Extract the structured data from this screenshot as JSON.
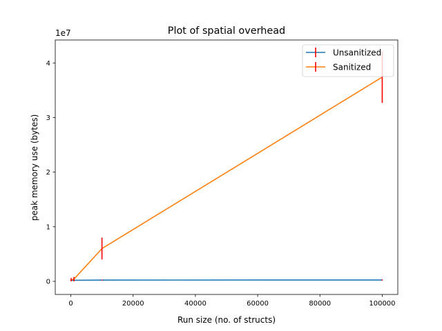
{
  "chart_data": {
    "type": "line",
    "title": "Plot of spatial overhead",
    "xlabel": "Run size (no. of structs)",
    "ylabel": "peak memory use (bytes)",
    "y_offset_text": "1e7",
    "xlim": [
      -5000,
      105000
    ],
    "ylim": [
      -2400000,
      44200000
    ],
    "x_ticks": [
      0,
      20000,
      40000,
      60000,
      80000,
      100000
    ],
    "x_tick_labels": [
      "0",
      "20000",
      "40000",
      "60000",
      "80000",
      "100000"
    ],
    "y_ticks": [
      0,
      10000000,
      20000000,
      30000000,
      40000000
    ],
    "y_tick_labels": [
      "0",
      "1",
      "2",
      "3",
      "4"
    ],
    "grid": false,
    "legend_position": "upper right",
    "x": [
      100,
      1000,
      10000,
      100000
    ],
    "series": [
      {
        "name": "Unsanitized",
        "color": "#1f77b4",
        "values": [
          180000,
          200000,
          230000,
          250000
        ],
        "errors": [
          30000,
          30000,
          80000,
          100000
        ]
      },
      {
        "name": "Sanitized",
        "color": "#ff7f0e",
        "values": [
          300000,
          400000,
          6000000,
          37400000
        ],
        "errors": [
          300000,
          400000,
          2000000,
          4700000
        ]
      }
    ],
    "error_bar_color": "#ff0000"
  }
}
